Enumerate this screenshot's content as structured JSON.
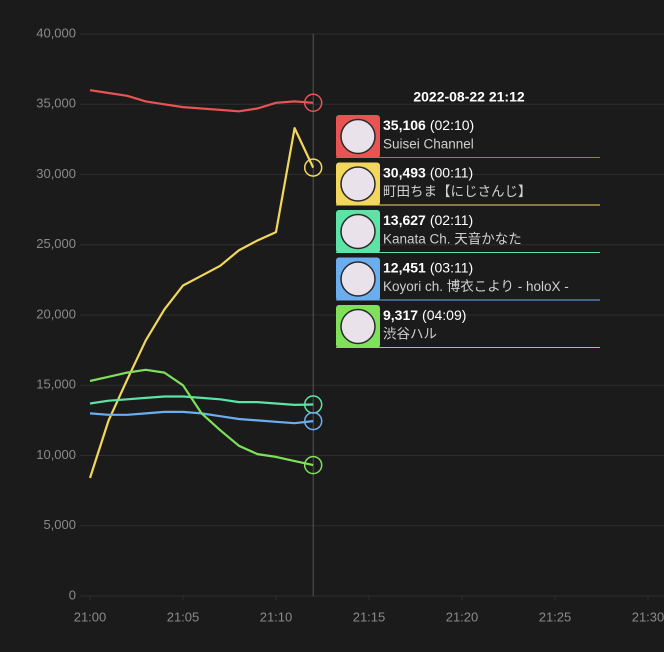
{
  "chart_data": {
    "type": "line",
    "x": [
      "21:00",
      "21:01",
      "21:02",
      "21:03",
      "21:04",
      "21:05",
      "21:06",
      "21:07",
      "21:08",
      "21:09",
      "21:10",
      "21:11",
      "21:12"
    ],
    "xlim": [
      "21:00",
      "21:30"
    ],
    "xticks": [
      "21:00",
      "21:05",
      "21:10",
      "21:15",
      "21:20",
      "21:25",
      "21:30"
    ],
    "ylim": [
      0,
      40000
    ],
    "yticks": [
      0,
      {
        "value": 5000,
        "label": "5,000"
      },
      {
        "value": 10000,
        "label": "10,000"
      },
      {
        "value": 15000,
        "label": "15,000"
      },
      {
        "value": 20000,
        "label": "20,000"
      },
      {
        "value": 25000,
        "label": "25,000"
      },
      {
        "value": 30000,
        "label": "30,000"
      },
      {
        "value": 35000,
        "label": "35,000"
      },
      {
        "value": 40000,
        "label": "40,000"
      }
    ],
    "grid": true,
    "series": [
      {
        "name": "Suisei Channel",
        "color": "#e85454",
        "values": [
          36000,
          35800,
          35600,
          35200,
          35000,
          34800,
          34700,
          34600,
          34500,
          34700,
          35100,
          35200,
          35106
        ]
      },
      {
        "name": "町田ちま【にじさんじ】",
        "color": "#f2d75c",
        "values": [
          8400,
          12500,
          15400,
          18200,
          20400,
          22100,
          22800,
          23500,
          24600,
          25300,
          25900,
          33300,
          30493
        ]
      },
      {
        "name": "Kanata Ch. 天音かなた",
        "color": "#5ee3a6",
        "values": [
          13700,
          13900,
          14000,
          14100,
          14200,
          14200,
          14100,
          14000,
          13800,
          13800,
          13700,
          13600,
          13627
        ]
      },
      {
        "name": "Koyori ch. 博衣こより - holoX -",
        "color": "#6aaef0",
        "values": [
          13000,
          12900,
          12900,
          13000,
          13100,
          13100,
          13000,
          12800,
          12600,
          12500,
          12400,
          12300,
          12451
        ]
      },
      {
        "name": "渋谷ハル",
        "color": "#7fe05a",
        "values": [
          15300,
          15600,
          15900,
          16100,
          15900,
          15000,
          13000,
          11800,
          10700,
          10100,
          9900,
          9600,
          9317
        ]
      }
    ],
    "tooltip": {
      "title": "2022-08-22 21:12",
      "items": [
        {
          "label": "35,106",
          "duration": "(02:10)"
        },
        {
          "label": "30,493",
          "duration": "(00:11)"
        },
        {
          "label": "13,627",
          "duration": "(02:11)"
        },
        {
          "label": "12,451",
          "duration": "(03:11)"
        },
        {
          "label": "9,317",
          "duration": "(04:09)"
        }
      ]
    }
  }
}
